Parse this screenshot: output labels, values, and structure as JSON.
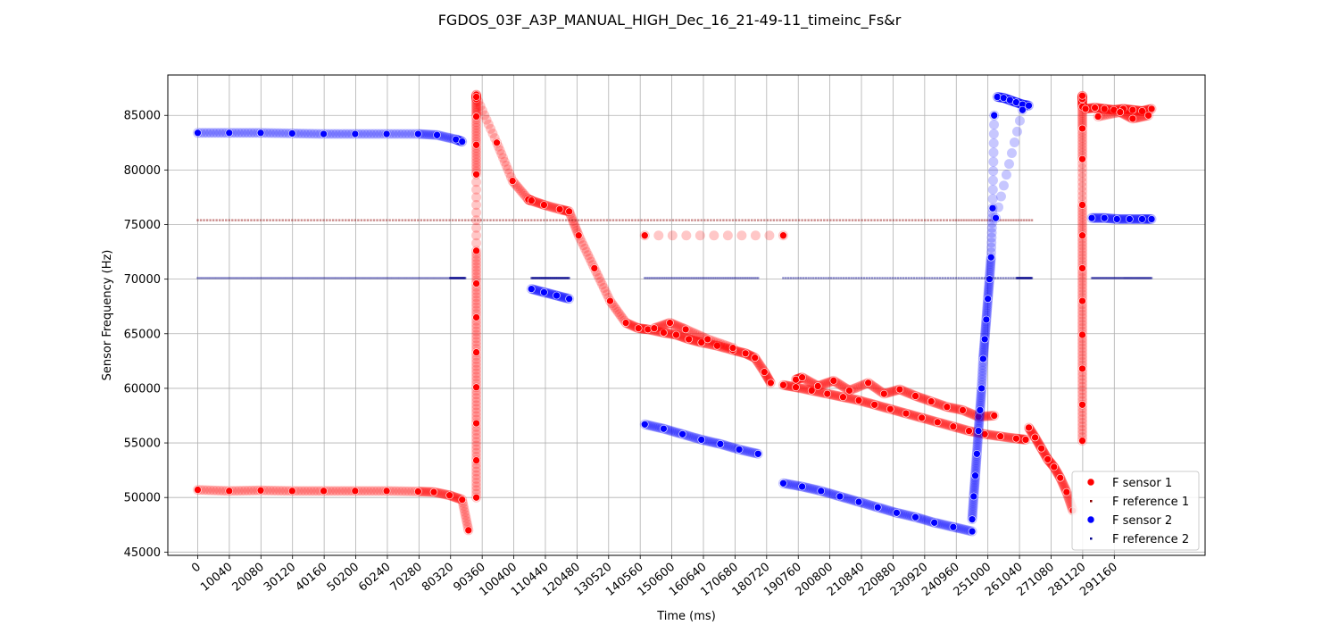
{
  "chart_data": {
    "type": "scatter",
    "title": "FGDOS_03F_A3P_MANUAL_HIGH_Dec_16_21-49-11_timeinc_Fs&r",
    "xlabel": "Time (ms)",
    "ylabel": "Sensor Frequency (Hz)",
    "xlim": [
      -9500,
      320000
    ],
    "ylim": [
      44700,
      88700
    ],
    "grid": true,
    "legend_position": "lower-right",
    "x_ticks": [
      0,
      10040,
      20080,
      30120,
      40160,
      50200,
      60240,
      70280,
      80320,
      90360,
      100400,
      110440,
      120480,
      130520,
      140560,
      150600,
      160640,
      170680,
      180720,
      190760,
      200800,
      210840,
      220880,
      230920,
      240960,
      251000,
      261040,
      271080,
      281120,
      291160
    ],
    "y_ticks": [
      45000,
      50000,
      55000,
      60000,
      65000,
      70000,
      75000,
      80000,
      85000
    ],
    "series": [
      {
        "name": "F sensor 1",
        "color": "#ff0000",
        "marker": "circle",
        "segments": [
          {
            "x": [
              0,
              10000,
              20000,
              30000,
              40000,
              50000,
              60000,
              70000,
              75000,
              80000,
              84000,
              86000
            ],
            "y": [
              50700,
              50600,
              50650,
              50600,
              50600,
              50600,
              50600,
              50550,
              50500,
              50200,
              49800,
              47000
            ]
          },
          {
            "x": [
              88500,
              88500,
              88500,
              88500,
              88500,
              88500,
              88500,
              88500,
              88500,
              88500,
              88500,
              88500,
              88500
            ],
            "y": [
              50000,
              53400,
              56800,
              60100,
              63300,
              66500,
              69600,
              72600,
              79600,
              82300,
              84900,
              86500,
              86900
            ]
          },
          {
            "x": [
              88500,
              95000,
              100000,
              105000,
              106000,
              110000,
              115000,
              118000,
              121000,
              126000,
              131000,
              136000,
              140000,
              143000,
              148000,
              152000,
              156000,
              160000,
              165000,
              170000,
              174000,
              177000,
              180000,
              182000
            ],
            "y": [
              86700,
              82500,
              79000,
              77300,
              77200,
              76800,
              76400,
              76200,
              74000,
              71000,
              68000,
              66000,
              65500,
              65400,
              65100,
              64900,
              64500,
              64200,
              63900,
              63500,
              63200,
              62800,
              61500,
              60500
            ]
          },
          {
            "x": [
              186000,
              190000,
              195000,
              200000,
              205000,
              210000,
              215000,
              220000,
              225000,
              230000,
              235000,
              240000,
              245000,
              250000,
              255000,
              260000,
              263000
            ],
            "y": [
              60300,
              60100,
              59800,
              59500,
              59200,
              58900,
              58500,
              58100,
              57700,
              57300,
              56900,
              56500,
              56100,
              55800,
              55600,
              55400,
              55300
            ]
          },
          {
            "x": [
              190000,
              192000,
              197000,
              202000,
              207000,
              213000,
              218000,
              223000,
              228000,
              233000,
              238000,
              243000,
              248000,
              253000
            ],
            "y": [
              60800,
              61000,
              60200,
              60700,
              59800,
              60500,
              59500,
              59900,
              59300,
              58800,
              58300,
              58000,
              57400,
              57500
            ]
          },
          {
            "x": [
              264000,
              266000,
              268000,
              270000,
              272000,
              274000,
              276000,
              278000
            ],
            "y": [
              56400,
              55500,
              54500,
              53500,
              52800,
              51800,
              50500,
              48800
            ]
          },
          {
            "x": [
              145000,
              150000,
              155000,
              162000,
              170000
            ],
            "y": [
              65500,
              66000,
              65400,
              64500,
              63700
            ]
          },
          {
            "x": [
              142000,
              186000
            ],
            "y": [
              74000,
              74000
            ]
          },
          {
            "x": [
              281000,
              281000,
              281000,
              281000,
              281000,
              281000,
              281000,
              281000,
              281000,
              281000,
              281000,
              281000,
              281000
            ],
            "y": [
              55200,
              58500,
              61800,
              64900,
              68000,
              71000,
              74000,
              76800,
              81000,
              83800,
              85800,
              86500,
              86800
            ]
          },
          {
            "x": [
              282000,
              285000,
              288000,
              291000,
              294000,
              297000,
              300000,
              303000
            ],
            "y": [
              85600,
              85700,
              85600,
              85500,
              85600,
              85500,
              85400,
              85600
            ]
          },
          {
            "x": [
              286000,
              293000,
              297000,
              302000
            ],
            "y": [
              84900,
              85300,
              84700,
              85000
            ]
          }
        ]
      },
      {
        "name": "F reference 1",
        "color": "#8b0000",
        "marker": "dot",
        "segments": [
          {
            "x": [
              0,
              30000,
              60000,
              90000,
              120000,
              150000,
              180000,
              210000,
              240000,
              265000
            ],
            "y": [
              75400,
              75400,
              75400,
              75400,
              75400,
              75400,
              75400,
              75400,
              75400,
              75400
            ]
          }
        ]
      },
      {
        "name": "F sensor 2",
        "color": "#0000ff",
        "marker": "circle",
        "segments": [
          {
            "x": [
              0,
              10000,
              20000,
              30000,
              40000,
              50000,
              60000,
              70000,
              76000,
              82000,
              84000
            ],
            "y": [
              83400,
              83400,
              83400,
              83350,
              83300,
              83300,
              83300,
              83300,
              83200,
              82800,
              82600
            ]
          },
          {
            "x": [
              106000,
              110000,
              114000,
              118000
            ],
            "y": [
              69100,
              68800,
              68500,
              68200
            ]
          },
          {
            "x": [
              142000,
              148000,
              154000,
              160000,
              166000,
              172000,
              178000
            ],
            "y": [
              56700,
              56300,
              55800,
              55300,
              54900,
              54400,
              54000
            ]
          },
          {
            "x": [
              186000,
              192000,
              198000,
              204000,
              210000,
              216000,
              222000,
              228000,
              234000,
              240000,
              246000
            ],
            "y": [
              51300,
              51000,
              50600,
              50100,
              49600,
              49100,
              48600,
              48200,
              47700,
              47300,
              46900
            ]
          },
          {
            "x": [
              246000,
              246500,
              247000,
              247500,
              248000,
              248500,
              249000,
              249500,
              250000,
              250500,
              251000,
              251500,
              252000,
              252500,
              253000
            ],
            "y": [
              48000,
              50100,
              52000,
              54000,
              56100,
              58000,
              60000,
              62700,
              64500,
              66300,
              68200,
              70000,
              72000,
              76500,
              85000
            ]
          },
          {
            "x": [
              254000,
              256000,
              258000,
              260000,
              262000,
              264000
            ],
            "y": [
              86700,
              86600,
              86400,
              86200,
              86000,
              85900
            ]
          },
          {
            "x": [
              262000,
              253500
            ],
            "y": [
              85500,
              75600
            ]
          },
          {
            "x": [
              284000,
              288000,
              292000,
              296000,
              300000,
              303000
            ],
            "y": [
              75600,
              75600,
              75500,
              75500,
              75500,
              75500
            ]
          }
        ]
      },
      {
        "name": "F reference 2",
        "color": "#00008b",
        "marker": "dot",
        "segments": [
          {
            "x": [
              0,
              20000,
              40000,
              60000,
              80000,
              85000
            ],
            "y": [
              70100,
              70100,
              70100,
              70100,
              70100,
              70100
            ]
          },
          {
            "x": [
              106000,
              112000,
              118000
            ],
            "y": [
              70100,
              70100,
              70100
            ]
          },
          {
            "x": [
              142000,
              160000,
              178000
            ],
            "y": [
              70100,
              70100,
              70100
            ]
          },
          {
            "x": [
              186000,
              210000,
              235000,
              260000,
              265000
            ],
            "y": [
              70100,
              70100,
              70100,
              70100,
              70100
            ]
          },
          {
            "x": [
              284000,
              294000,
              303000
            ],
            "y": [
              70100,
              70100,
              70100
            ]
          }
        ]
      }
    ]
  }
}
